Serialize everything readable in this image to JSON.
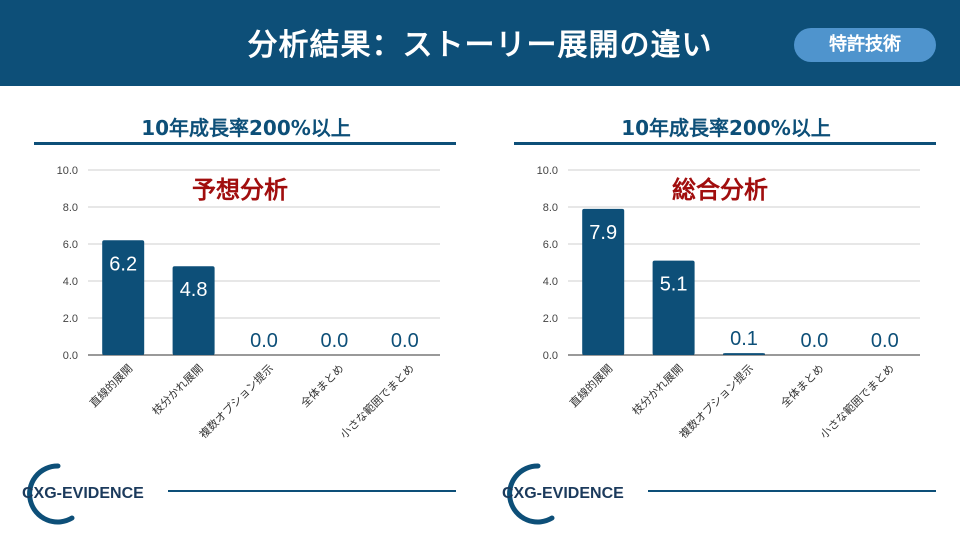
{
  "header": {
    "title": "分析結果：ストーリー展開の違い",
    "badge": "特許技術"
  },
  "logo_text": "CXG-EVIDENCE",
  "colors": {
    "header_bg": "#0d4f78",
    "badge_bg": "#4f94cd",
    "bar": "#0d4f78",
    "tag": "#a10e0e"
  },
  "chart_data": [
    {
      "type": "bar",
      "title": "10年成長率200%以上",
      "annotation": "予想分析",
      "categories": [
        "直線的展開",
        "枝分かれ展開",
        "複数オプション提示",
        "全体まとめ",
        "小さな範囲でまとめ"
      ],
      "values": [
        6.2,
        4.8,
        0.0,
        0.0,
        0.0
      ],
      "value_labels": [
        "6.2",
        "4.8",
        "0.0",
        "0.0",
        "0.0"
      ],
      "ylim": [
        0,
        10
      ],
      "yticks": [
        "0.0",
        "2.0",
        "4.0",
        "6.0",
        "8.0",
        "10.0"
      ],
      "grid": true,
      "xlabel": "",
      "ylabel": ""
    },
    {
      "type": "bar",
      "title": "10年成長率200%以上",
      "annotation": "総合分析",
      "categories": [
        "直線的展開",
        "枝分かれ展開",
        "複数オプション提示",
        "全体まとめ",
        "小さな範囲でまとめ"
      ],
      "values": [
        7.9,
        5.1,
        0.1,
        0.0,
        0.0
      ],
      "value_labels": [
        "7.9",
        "5.1",
        "0.1",
        "0.0",
        "0.0"
      ],
      "ylim": [
        0,
        10
      ],
      "yticks": [
        "0.0",
        "2.0",
        "4.0",
        "6.0",
        "8.0",
        "10.0"
      ],
      "grid": true,
      "xlabel": "",
      "ylabel": ""
    }
  ]
}
